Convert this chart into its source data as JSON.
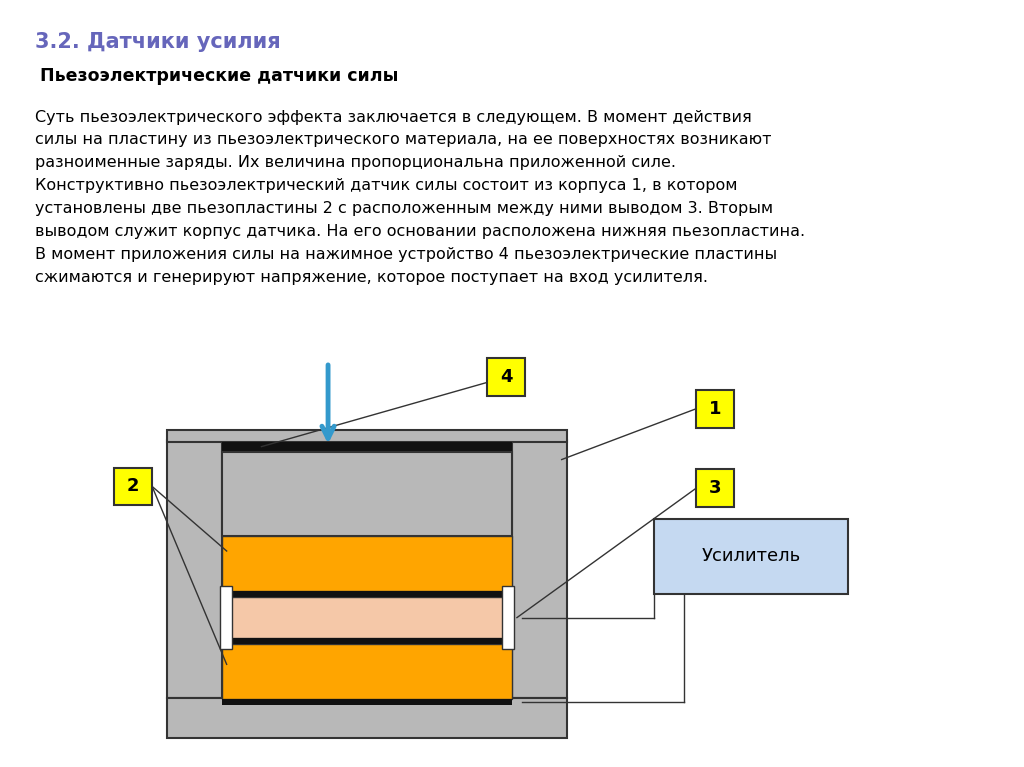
{
  "title": "3.2. Датчики усилия",
  "subtitle": "Пьезоэлектрические датчики силы",
  "body_text": "Суть пьезоэлектрического эффекта заключается в следующем. В момент действия силы на пластину из пьезоэлектрического материала, на ее поверхностях возникают\nразноименные заряды. Их величина пропорциональна приложенной силе.\nКонструктивно пьезоэлектрический датчик силы состоит из корпуса 1, в котором установлены две пьезопластины 2 с расположенным между ними выводом 3. Вторым\nвыводом служит корпус датчика. На его основании расположена нижняя пьезопластина.\nВ момент приложения силы на нажимное устройство 4 пьезоэлектрические пластины\nсжимаются и генерируют напряжение, которое поступает на вход усилителя.",
  "amplifier_label": "Усилитель",
  "title_color": "#6666bb",
  "subtitle_color": "#000000",
  "body_color": "#000000",
  "bg_color": "#ffffff",
  "label_bg": "#ffff00",
  "amplifier_bg": "#c5d9f1",
  "gray_wall": "#b8b8b8",
  "dark_gray": "#333333",
  "black": "#111111",
  "orange_color": "#ffa500",
  "pink_color": "#f5c8a8",
  "arrow_color": "#3399cc",
  "white": "#ffffff"
}
